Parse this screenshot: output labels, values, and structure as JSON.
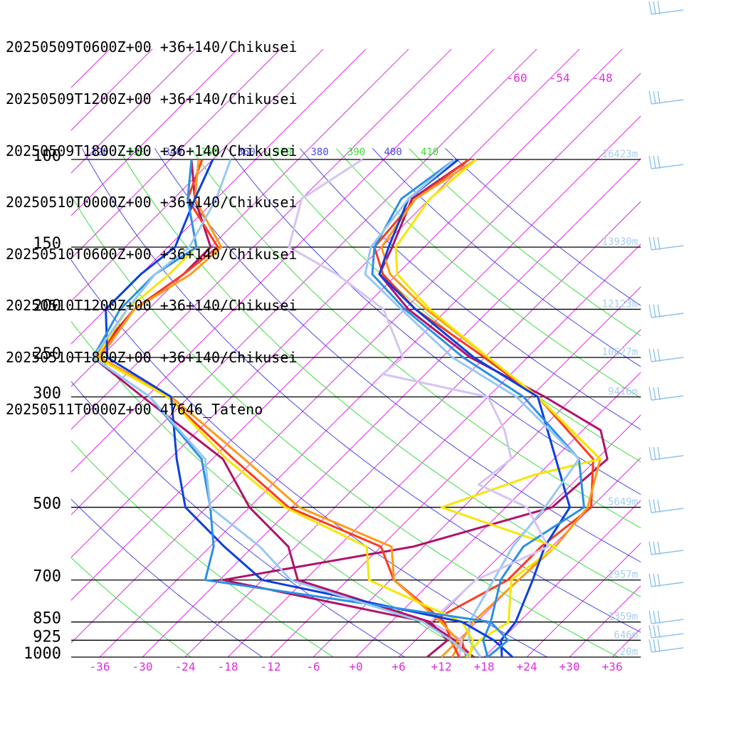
{
  "chart_data": {
    "type": "skew-t log-p sounding",
    "legend": [
      {
        "label": "20250509T0600Z+00 +36+140/Chikusei",
        "color": "#b0126a"
      },
      {
        "label": "20250509T1200Z+00 +36+140/Chikusei",
        "color": "#ff3b1e"
      },
      {
        "label": "20250509T1800Z+00 +36+140/Chikusei",
        "color": "#ff9a17"
      },
      {
        "label": "20250510T0000Z+00 +36+140/Chikusei",
        "color": "#f6e600"
      },
      {
        "label": "20250510T0600Z+00 +36+140/Chikusei",
        "color": "#0b3fe0"
      },
      {
        "label": "20250510T1200Z+00 +36+140/Chikusei",
        "color": "#2c8fe6"
      },
      {
        "label": "20250510T1800Z+00 +36+140/Chikusei",
        "color": "#98c8f0"
      },
      {
        "label": "20250511T0000Z+00 47646_Tateno",
        "color": "#d4c4f2"
      }
    ],
    "pressure_levels": [
      {
        "p": 100,
        "label": "100",
        "height": "16423m"
      },
      {
        "p": 150,
        "label": "150",
        "height": "13930m"
      },
      {
        "p": 200,
        "label": "200",
        "height": "12123m"
      },
      {
        "p": 250,
        "label": "250",
        "height": "10627m"
      },
      {
        "p": 300,
        "label": "300",
        "height": "9416m"
      },
      {
        "p": 500,
        "label": "500",
        "height": "5649m"
      },
      {
        "p": 700,
        "label": "700",
        "height": "2957m"
      },
      {
        "p": 850,
        "label": "850",
        "height": "1359m"
      },
      {
        "p": 925,
        "label": "925",
        "height": "646m"
      },
      {
        "p": 1000,
        "label": "1000",
        "height": "-20m"
      }
    ],
    "x_ticks": [
      "-36",
      "-30",
      "-24",
      "-18",
      "-12",
      "-6",
      "+0",
      "+6",
      "+12",
      "+18",
      "+24",
      "+30",
      "+36"
    ],
    "x_range_celsius_at_1000hPa": [
      -40,
      40
    ],
    "theta_labels": [
      "320",
      "330",
      "340",
      "350",
      "360",
      "370",
      "380",
      "390",
      "400",
      "410"
    ],
    "theta_label_colors": [
      "#4a4ae6",
      "#3ddc3d",
      "#4a4ae6",
      "#3ddc3d",
      "#4a4ae6",
      "#3ddc3d",
      "#4a4ae6",
      "#3ddc3d",
      "#4a4ae6",
      "#3ddc3d"
    ],
    "upper_temp_labels": [
      "-60",
      "-54",
      "-48"
    ],
    "isotherm_color": "#e02ce0",
    "dry_adiabat_colors": [
      "#4a4ae6",
      "#3ddc3d"
    ],
    "barb_color": "#8ec3ee",
    "profiles": [
      {
        "name": "20250509T0600Z+00",
        "color": "#b0126a",
        "points": [
          [
            1000,
            16.5
          ],
          [
            925,
            11.5
          ],
          [
            850,
            5.0
          ],
          [
            700,
            -29.5
          ],
          [
            600,
            -7.5
          ],
          [
            500,
            6.5
          ],
          [
            400,
            7.5
          ],
          [
            350,
            2.5
          ],
          [
            300,
            -10.0
          ],
          [
            250,
            -26.0
          ],
          [
            200,
            -41.5
          ],
          [
            170,
            -50.5
          ],
          [
            150,
            -52.5
          ],
          [
            120,
            -56.5
          ],
          [
            100,
            -54.0
          ]
        ]
      },
      {
        "name": "20250509T1200Z+00",
        "color": "#ff3b1e",
        "points": [
          [
            1000,
            15.5
          ],
          [
            925,
            12.5
          ],
          [
            850,
            5.5
          ],
          [
            700,
            10.5
          ],
          [
            600,
            10.5
          ],
          [
            500,
            12.0
          ],
          [
            400,
            5.5
          ],
          [
            300,
            -11.0
          ],
          [
            250,
            -24.0
          ],
          [
            200,
            -40.5
          ],
          [
            170,
            -50.0
          ],
          [
            150,
            -55.0
          ],
          [
            120,
            -56.0
          ],
          [
            100,
            -54.0
          ]
        ]
      },
      {
        "name": "20250509T1800Z+00",
        "color": "#ff9a17",
        "points": [
          [
            1000,
            13.5
          ],
          [
            925,
            12.5
          ],
          [
            850,
            11.5
          ],
          [
            700,
            12.0
          ],
          [
            600,
            12.5
          ],
          [
            500,
            11.5
          ],
          [
            400,
            6.5
          ],
          [
            300,
            -11.0
          ],
          [
            250,
            -23.5
          ],
          [
            200,
            -39.0
          ],
          [
            170,
            -49.0
          ],
          [
            150,
            -54.0
          ],
          [
            120,
            -56.0
          ],
          [
            100,
            -53.0
          ]
        ]
      },
      {
        "name": "20250510T0000Z+00",
        "color": "#f6e600",
        "points": [
          [
            1000,
            15.5
          ],
          [
            925,
            15.0
          ],
          [
            850,
            16.5
          ],
          [
            700,
            11.0
          ],
          [
            600,
            12.5
          ],
          [
            500,
            -9.0
          ],
          [
            430,
            -0.5
          ],
          [
            400,
            6.5
          ],
          [
            300,
            -11.0
          ],
          [
            250,
            -23.5
          ],
          [
            200,
            -38.5
          ],
          [
            170,
            -48.0
          ],
          [
            150,
            -52.0
          ],
          [
            120,
            -54.0
          ],
          [
            100,
            -53.0
          ]
        ]
      },
      {
        "name": "20250510T0600Z+00",
        "color": "#0b3fe0",
        "points": [
          [
            1000,
            20.5
          ],
          [
            925,
            18.0
          ],
          [
            850,
            17.5
          ],
          [
            700,
            14.0
          ],
          [
            600,
            11.0
          ],
          [
            500,
            9.0
          ],
          [
            300,
            -11.0
          ],
          [
            250,
            -25.5
          ],
          [
            200,
            -40.5
          ],
          [
            170,
            -50.5
          ],
          [
            150,
            -53.0
          ],
          [
            120,
            -57.0
          ],
          [
            100,
            -55.5
          ]
        ]
      },
      {
        "name": "20250510T1200Z+00",
        "color": "#2c8fe6",
        "points": [
          [
            1000,
            18.5
          ],
          [
            925,
            15.5
          ],
          [
            850,
            14.0
          ],
          [
            700,
            9.5
          ],
          [
            600,
            8.0
          ],
          [
            500,
            11.0
          ],
          [
            400,
            3.5
          ],
          [
            300,
            -13.0
          ],
          [
            250,
            -27.0
          ],
          [
            200,
            -42.0
          ],
          [
            170,
            -51.5
          ],
          [
            150,
            -55.0
          ],
          [
            120,
            -58.0
          ],
          [
            100,
            -56.0
          ]
        ]
      },
      {
        "name": "20250510T1800Z+00",
        "color": "#98c8f0",
        "points": [
          [
            1000,
            17.5
          ],
          [
            925,
            13.5
          ],
          [
            850,
            11.0
          ],
          [
            700,
            8.5
          ],
          [
            600,
            6.5
          ],
          [
            500,
            5.5
          ],
          [
            400,
            3.5
          ],
          [
            300,
            -14.0
          ],
          [
            250,
            -28.5
          ],
          [
            200,
            -42.5
          ],
          [
            170,
            -52.5
          ],
          [
            150,
            -55.5
          ],
          [
            120,
            -57.0
          ],
          [
            100,
            -56.0
          ]
        ]
      },
      {
        "name": "20250511T0000Z+00 47646_Tateno",
        "color": "#d4c4f2",
        "points": [
          [
            1000,
            14.5
          ],
          [
            925,
            12.5
          ],
          [
            850,
            5.5
          ],
          [
            700,
            6.0
          ],
          [
            600,
            11.5
          ],
          [
            500,
            3.0
          ],
          [
            450,
            -7.0
          ],
          [
            400,
            -6.0
          ],
          [
            350,
            -11.0
          ],
          [
            300,
            -18.0
          ],
          [
            270,
            -36.0
          ],
          [
            250,
            -35.5
          ],
          [
            200,
            -45.0
          ],
          [
            170,
            -56.5
          ],
          [
            150,
            -67.0
          ],
          [
            120,
            -72.0
          ],
          [
            100,
            -69.0
          ]
        ]
      },
      {
        "name": "20250509T0600Z+00 dewpoint",
        "color": "#b0126a",
        "points": [
          [
            1000,
            10.0
          ],
          [
            925,
            10.5
          ],
          [
            850,
            5.5
          ],
          [
            700,
            -19.0
          ],
          [
            600,
            -25.0
          ],
          [
            500,
            -36.0
          ],
          [
            400,
            -46.5
          ],
          [
            300,
            -66.5
          ],
          [
            250,
            -79.0
          ],
          [
            200,
            -80.0
          ],
          [
            170,
            -78.0
          ],
          [
            150,
            -78.0
          ],
          [
            120,
            -87.0
          ],
          [
            100,
            -93.0
          ]
        ]
      },
      {
        "name": "20250509T1200Z+00 dewpoint",
        "color": "#ff3b1e",
        "points": [
          [
            1000,
            14.5
          ],
          [
            925,
            11.0
          ],
          [
            850,
            7.5
          ],
          [
            700,
            -5.5
          ],
          [
            600,
            -12.0
          ],
          [
            500,
            -30.5
          ],
          [
            400,
            -45.0
          ],
          [
            300,
            -63.0
          ],
          [
            250,
            -78.5
          ],
          [
            200,
            -80.0
          ],
          [
            170,
            -78.0
          ],
          [
            150,
            -77.0
          ],
          [
            120,
            -88.0
          ],
          [
            100,
            -91.5
          ]
        ]
      },
      {
        "name": "20250509T1800Z+00 dewpoint",
        "color": "#ff9a17",
        "points": [
          [
            1000,
            12.0
          ],
          [
            925,
            12.0
          ],
          [
            850,
            7.0
          ],
          [
            700,
            -5.5
          ],
          [
            600,
            -10.5
          ],
          [
            500,
            -29.0
          ],
          [
            400,
            -43.5
          ],
          [
            300,
            -62.5
          ],
          [
            250,
            -78.0
          ],
          [
            200,
            -80.0
          ],
          [
            170,
            -77.0
          ],
          [
            150,
            -76.5
          ],
          [
            120,
            -87.0
          ],
          [
            100,
            -92.0
          ]
        ]
      },
      {
        "name": "20250510T0000Z+00 dewpoint",
        "color": "#f6e600",
        "points": [
          [
            1000,
            16.0
          ],
          [
            925,
            14.0
          ],
          [
            850,
            10.0
          ],
          [
            700,
            -9.0
          ],
          [
            600,
            -14.0
          ],
          [
            500,
            -31.0
          ],
          [
            400,
            -46.0
          ],
          [
            300,
            -63.0
          ],
          [
            250,
            -78.5
          ],
          [
            200,
            -81.0
          ],
          [
            170,
            -80.0
          ],
          [
            150,
            -80.0
          ],
          [
            120,
            -88.0
          ],
          [
            100,
            -93.0
          ]
        ]
      },
      {
        "name": "20250510T0600Z+00 dewpoint",
        "color": "#0b3fe0",
        "points": [
          [
            1000,
            22.0
          ],
          [
            925,
            17.0
          ],
          [
            850,
            10.0
          ],
          [
            700,
            -24.0
          ],
          [
            600,
            -34.0
          ],
          [
            500,
            -45.0
          ],
          [
            400,
            -53.0
          ],
          [
            300,
            -62.5
          ],
          [
            250,
            -77.0
          ],
          [
            200,
            -84.0
          ],
          [
            170,
            -84.0
          ],
          [
            150,
            -83.0
          ],
          [
            120,
            -87.0
          ],
          [
            100,
            -90.0
          ]
        ]
      },
      {
        "name": "20250510T1200Z+00 dewpoint",
        "color": "#2c8fe6",
        "points": [
          [
            1000,
            18.5
          ],
          [
            925,
            19.0
          ],
          [
            850,
            14.0
          ],
          [
            700,
            -32.0
          ],
          [
            600,
            -35.5
          ],
          [
            500,
            -41.5
          ],
          [
            400,
            -49.5
          ],
          [
            300,
            -65.5
          ],
          [
            250,
            -79.0
          ],
          [
            200,
            -82.0
          ],
          [
            170,
            -82.0
          ],
          [
            150,
            -80.0
          ],
          [
            120,
            -88.0
          ],
          [
            100,
            -93.0
          ]
        ]
      },
      {
        "name": "20250510T1800Z+00 dewpoint",
        "color": "#98c8f0",
        "points": [
          [
            1000,
            16.0
          ],
          [
            925,
            11.0
          ],
          [
            850,
            4.5
          ],
          [
            700,
            -20.0
          ],
          [
            600,
            -29.0
          ],
          [
            500,
            -41.5
          ],
          [
            400,
            -49.0
          ],
          [
            300,
            -65.5
          ],
          [
            250,
            -79.0
          ],
          [
            200,
            -81.0
          ],
          [
            170,
            -82.0
          ],
          [
            150,
            -81.0
          ],
          [
            120,
            -84.0
          ],
          [
            100,
            -87.5
          ]
        ]
      }
    ]
  }
}
